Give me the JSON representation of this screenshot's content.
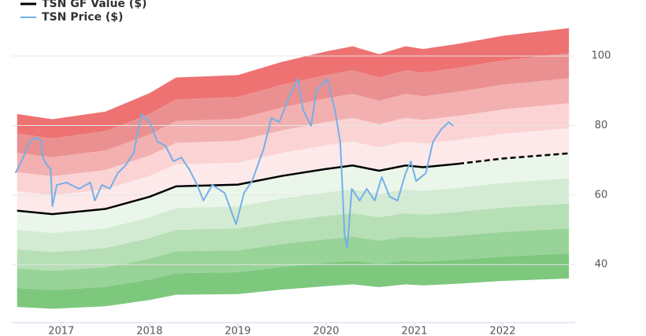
{
  "chart_data": {
    "type": "gf-value",
    "xlim": [
      2016.44,
      2022.82
    ],
    "xticks": [
      2017,
      2018,
      2019,
      2020,
      2021,
      2022
    ],
    "ylim": [
      23.3,
      116.1
    ],
    "yticks": [
      40,
      60,
      80,
      100
    ],
    "grid": true,
    "legend": "top-left",
    "dashed_after": 2021.5,
    "gf_x": [
      2016.5,
      2016.9,
      2017.5,
      2018,
      2018.3,
      2019,
      2019.5,
      2020,
      2020.3,
      2020.6,
      2020.9,
      2021.1,
      2021.5,
      2022,
      2022.75
    ],
    "bands_below": [
      {
        "color": "#7dc87d",
        "values": [
          27.8,
          27.3,
          28,
          29.8,
          31.3,
          31.5,
          32.8,
          33.8,
          34.3,
          33.5,
          34.3,
          34,
          34.5,
          35.3,
          36
        ]
      },
      {
        "color": "#98d398",
        "values": [
          33.3,
          32.7,
          33.6,
          35.7,
          37.5,
          37.8,
          39.3,
          40.5,
          41.1,
          40.2,
          41.1,
          40.8,
          41.4,
          42.3,
          43.2
        ]
      },
      {
        "color": "#b6dfb6",
        "values": [
          38.9,
          38.2,
          39.2,
          41.7,
          43.8,
          44.1,
          45.9,
          47.3,
          48,
          46.9,
          48,
          47.6,
          48.3,
          49.4,
          50.4
        ]
      },
      {
        "color": "#d3ebd3",
        "values": [
          44.4,
          43.6,
          44.8,
          47.6,
          50,
          50.4,
          52.4,
          54,
          54.8,
          53.6,
          54.8,
          54.4,
          55.2,
          56.4,
          57.6
        ]
      },
      {
        "color": "#ebf6eb",
        "values": [
          50,
          49.1,
          50.4,
          53.6,
          56.3,
          56.7,
          59,
          60.8,
          61.7,
          60.3,
          61.7,
          61.2,
          62.1,
          63.5,
          64.8
        ]
      }
    ],
    "bands_above": [
      {
        "color": "#fde9ea",
        "values": [
          61.1,
          60,
          61.6,
          65.5,
          68.8,
          69.3,
          72.1,
          74.3,
          75.4,
          73.7,
          75.4,
          74.8,
          75.9,
          77.6,
          79.2
        ]
      },
      {
        "color": "#fbd3d5",
        "values": [
          66.6,
          65.4,
          67.2,
          71.4,
          75,
          75.6,
          78.6,
          81,
          82.2,
          80.4,
          82.2,
          81.6,
          82.8,
          84.6,
          86.4
        ]
      },
      {
        "color": "#f3b0b0",
        "values": [
          72.2,
          70.9,
          72.8,
          77.4,
          81.3,
          81.9,
          85.2,
          87.8,
          89.1,
          87.1,
          89.1,
          88.4,
          89.7,
          91.7,
          93.6
        ]
      },
      {
        "color": "#eb9090",
        "values": [
          77.7,
          76.3,
          78.4,
          83.3,
          87.5,
          88.2,
          91.7,
          94.5,
          95.9,
          93.8,
          95.9,
          95.2,
          96.6,
          98.7,
          100.8
        ]
      },
      {
        "color": "#ee7272",
        "values": [
          83.3,
          81.8,
          84,
          89.3,
          93.8,
          94.5,
          98.3,
          101.3,
          102.8,
          100.5,
          102.8,
          102,
          103.5,
          105.8,
          108
        ]
      }
    ],
    "series": [
      {
        "name": "TSN GF Value ($)",
        "color": "#000000",
        "values": [
          55.5,
          54.5,
          56,
          59.5,
          62.5,
          63,
          65.5,
          67.5,
          68.5,
          67,
          68.5,
          68,
          69,
          70.5,
          72
        ]
      },
      {
        "name": "TSN Price ($)",
        "color": "#74b0e8",
        "x": [
          2016.48,
          2016.57,
          2016.64,
          2016.71,
          2016.77,
          2016.79,
          2016.84,
          2016.88,
          2016.9,
          2016.95,
          2017.06,
          2017.2,
          2017.33,
          2017.38,
          2017.46,
          2017.55,
          2017.64,
          2017.73,
          2017.82,
          2017.91,
          2018,
          2018.09,
          2018.18,
          2018.27,
          2018.36,
          2018.45,
          2018.54,
          2018.61,
          2018.71,
          2018.85,
          2018.98,
          2019.07,
          2019.16,
          2019.29,
          2019.38,
          2019.47,
          2019.59,
          2019.68,
          2019.74,
          2019.83,
          2019.89,
          2020.01,
          2020.1,
          2020.16,
          2020.21,
          2020.24,
          2020.29,
          2020.38,
          2020.46,
          2020.55,
          2020.63,
          2020.72,
          2020.81,
          2020.9,
          2020.96,
          2021.02,
          2021.13,
          2021.21,
          2021.3,
          2021.39,
          2021.44
        ],
        "values": [
          66.3,
          70.8,
          75.3,
          76.5,
          75.8,
          70.8,
          68.6,
          67.4,
          56.8,
          62.9,
          63.6,
          61.8,
          63.6,
          58.4,
          62.9,
          61.8,
          66.3,
          68.6,
          72,
          83.3,
          81,
          75.3,
          74.2,
          69.7,
          70.8,
          67.4,
          62.9,
          58.4,
          62.9,
          60.6,
          51.6,
          60.6,
          64,
          73.1,
          82.1,
          81,
          88.9,
          93.4,
          84.4,
          79.9,
          90,
          93.4,
          84.4,
          75.3,
          48.2,
          44.8,
          61.8,
          58.4,
          61.8,
          58.4,
          65.2,
          59.5,
          58.4,
          66.3,
          69.7,
          64,
          66.3,
          75.3,
          78.8,
          81,
          79.9
        ]
      }
    ]
  }
}
